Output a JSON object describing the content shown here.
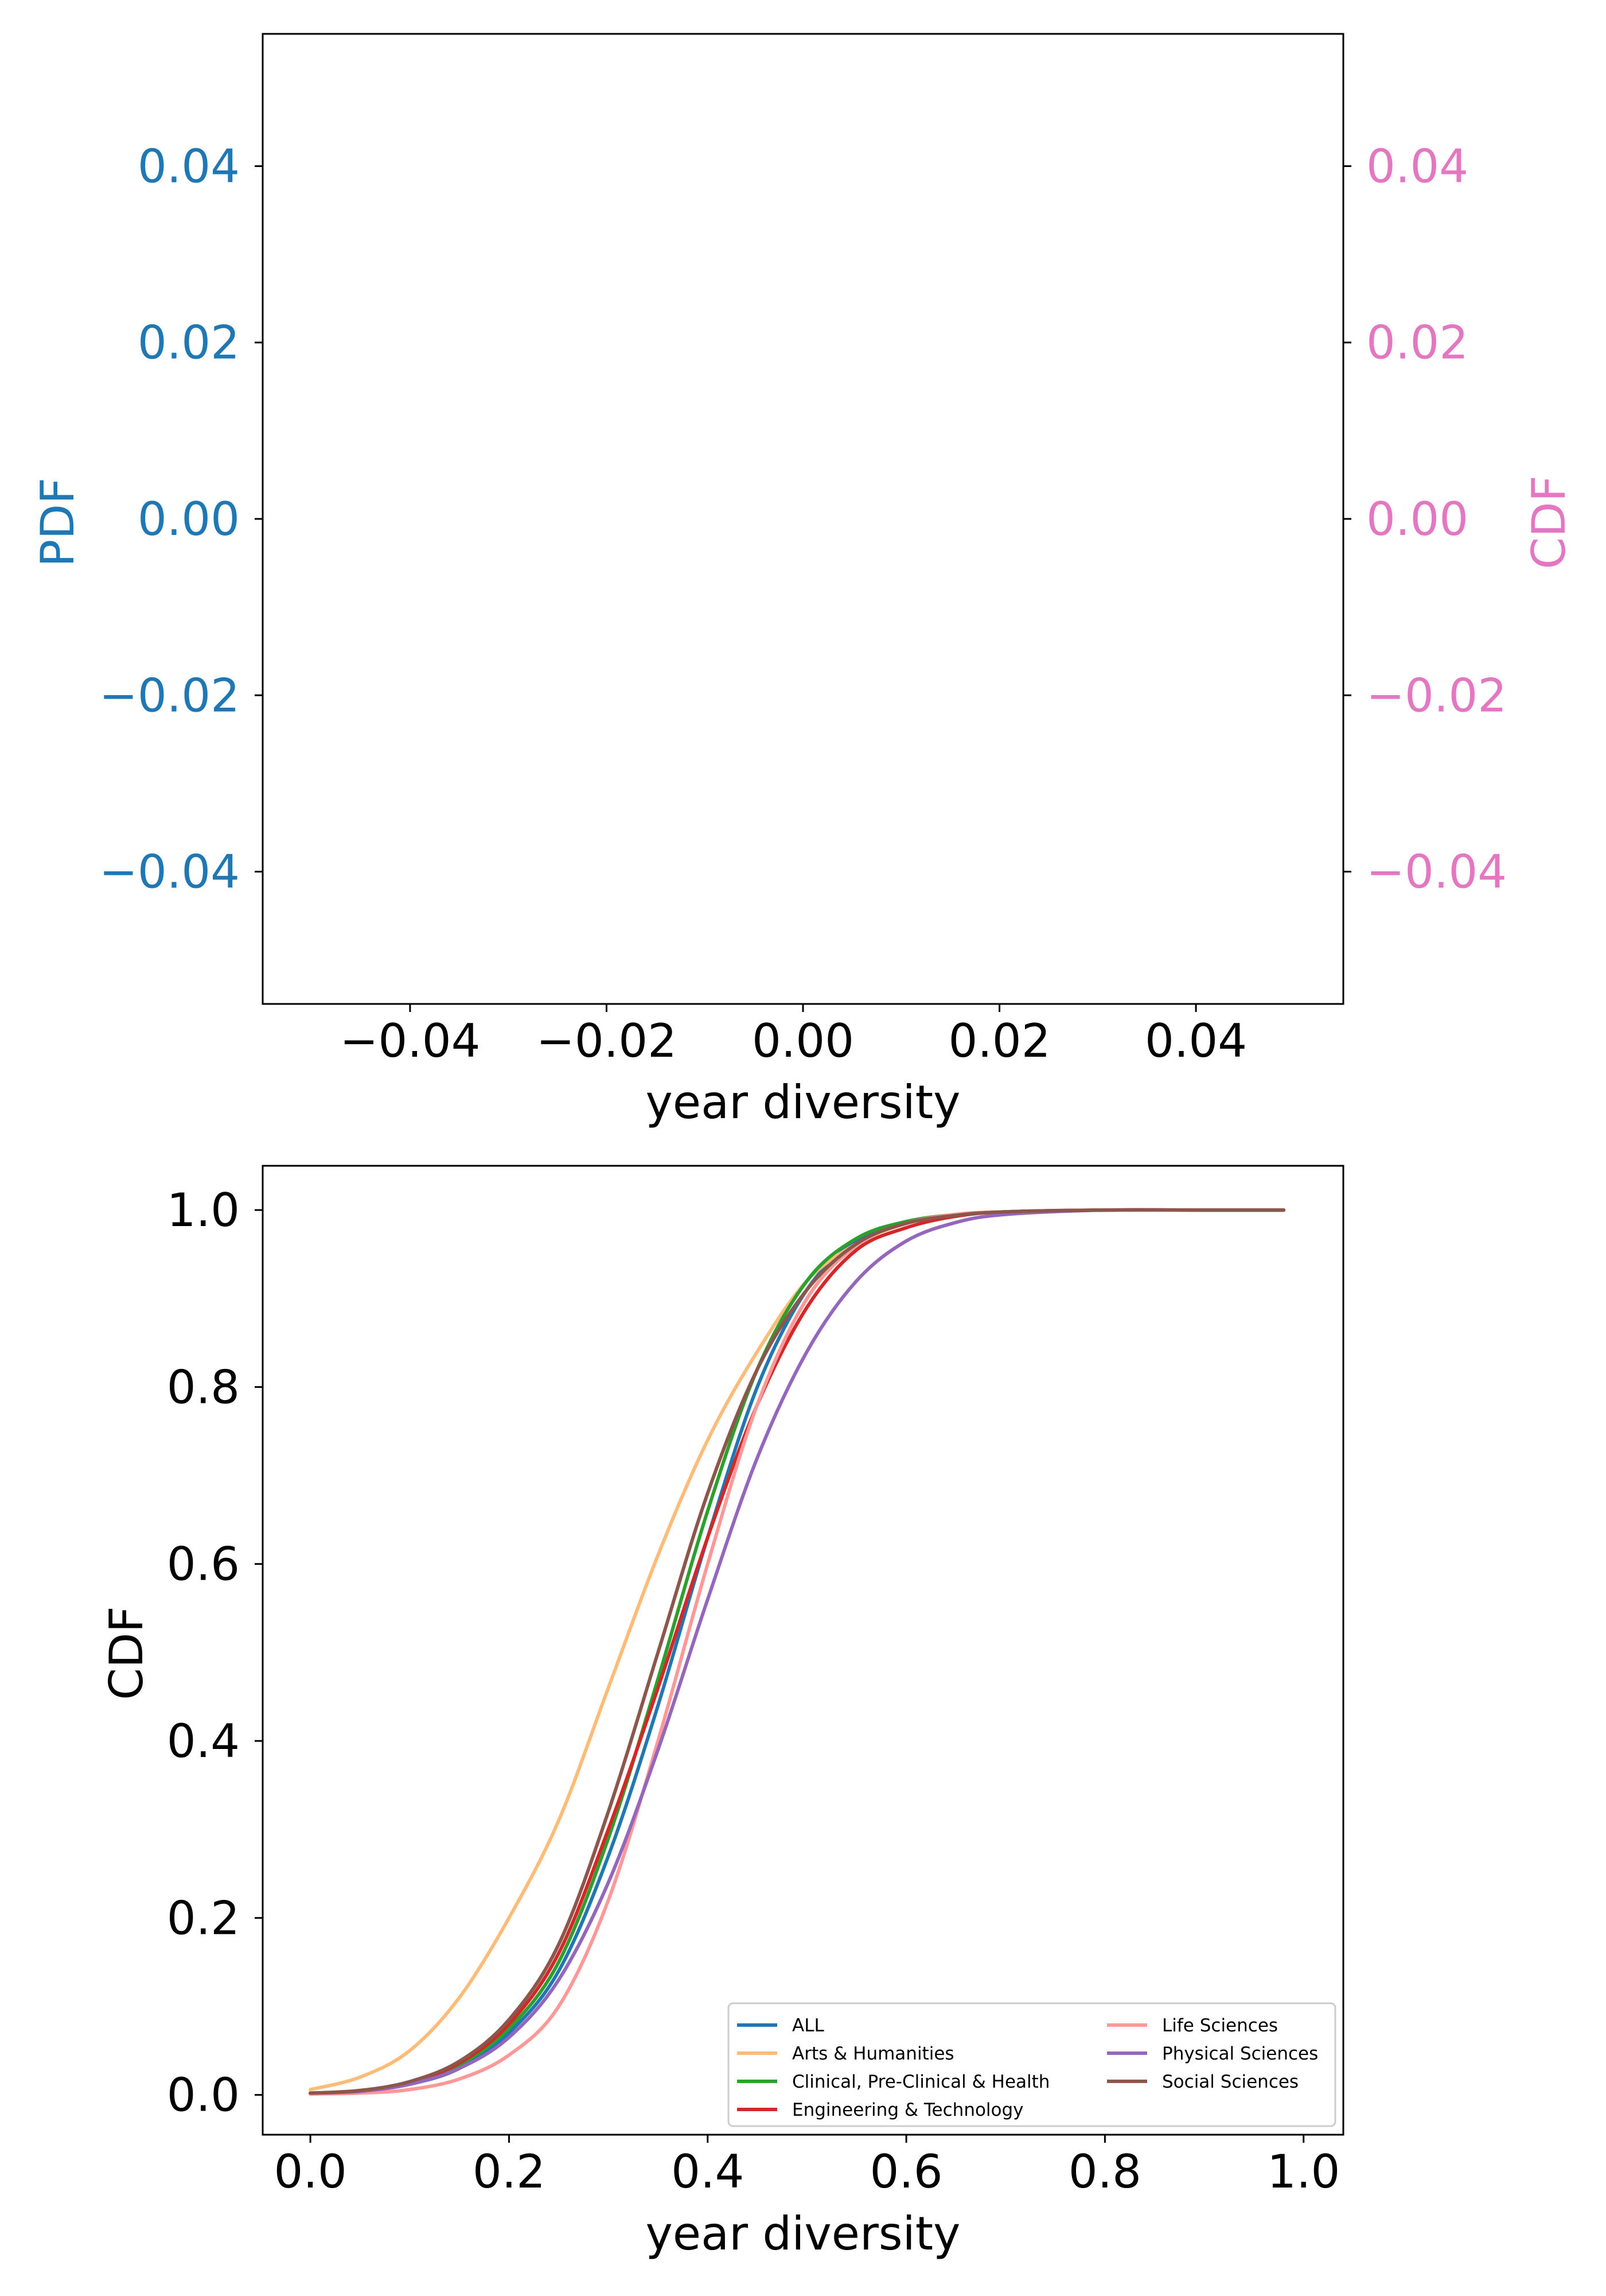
{
  "chart_data": [
    {
      "type": "line",
      "title": "",
      "xlabel": "year diversity",
      "ylabel_left": "PDF",
      "ylabel_right": "CDF",
      "xlim": [
        -0.055,
        0.055
      ],
      "ylim": [
        -0.055,
        0.055
      ],
      "x_ticks": [
        {
          "value": -0.04,
          "label": "−0.04"
        },
        {
          "value": -0.02,
          "label": "−0.02"
        },
        {
          "value": 0.0,
          "label": "0.00"
        },
        {
          "value": 0.02,
          "label": "0.02"
        },
        {
          "value": 0.04,
          "label": "0.04"
        }
      ],
      "y_ticks_left": [
        {
          "value": 0.04,
          "label": "0.04"
        },
        {
          "value": 0.02,
          "label": "0.02"
        },
        {
          "value": 0.0,
          "label": "0.00"
        },
        {
          "value": -0.02,
          "label": "−0.02"
        },
        {
          "value": -0.04,
          "label": "−0.04"
        }
      ],
      "y_ticks_right": [
        {
          "value": 0.04,
          "label": "0.04"
        },
        {
          "value": 0.02,
          "label": "0.02"
        },
        {
          "value": 0.0,
          "label": "0.00"
        },
        {
          "value": -0.02,
          "label": "−0.02"
        },
        {
          "value": -0.04,
          "label": "−0.04"
        }
      ],
      "left_axis_color": "#1f77b4",
      "right_axis_color": "#e377c2",
      "series": [],
      "grid": false
    },
    {
      "type": "line",
      "title": "",
      "xlabel": "year diversity",
      "ylabel": "CDF",
      "xlim": [
        -0.048,
        1.04
      ],
      "ylim": [
        -0.045,
        1.05
      ],
      "x_ticks": [
        {
          "value": 0.0,
          "label": "0.0"
        },
        {
          "value": 0.2,
          "label": "0.2"
        },
        {
          "value": 0.4,
          "label": "0.4"
        },
        {
          "value": 0.6,
          "label": "0.6"
        },
        {
          "value": 0.8,
          "label": "0.8"
        },
        {
          "value": 1.0,
          "label": "1.0"
        }
      ],
      "y_ticks": [
        {
          "value": 0.0,
          "label": "0.0"
        },
        {
          "value": 0.2,
          "label": "0.2"
        },
        {
          "value": 0.4,
          "label": "0.4"
        },
        {
          "value": 0.6,
          "label": "0.6"
        },
        {
          "value": 0.8,
          "label": "0.8"
        },
        {
          "value": 1.0,
          "label": "1.0"
        }
      ],
      "grid": false,
      "legend_placement": "bottom-right",
      "legend_columns": 2,
      "series": [
        {
          "name": "ALL",
          "color": "#1f77b4",
          "x": [
            0.0,
            0.05,
            0.1,
            0.15,
            0.2,
            0.25,
            0.3,
            0.35,
            0.4,
            0.45,
            0.5,
            0.55,
            0.6,
            0.65,
            0.7,
            0.8,
            0.9,
            0.98
          ],
          "y": [
            0.002,
            0.004,
            0.012,
            0.03,
            0.07,
            0.14,
            0.27,
            0.44,
            0.63,
            0.8,
            0.91,
            0.965,
            0.985,
            0.995,
            0.998,
            1.0,
            1.0,
            1.0
          ]
        },
        {
          "name": "Arts & Humanities",
          "color": "#ffbb78",
          "x": [
            0.0,
            0.05,
            0.1,
            0.15,
            0.2,
            0.25,
            0.3,
            0.35,
            0.4,
            0.45,
            0.5,
            0.55,
            0.6,
            0.65,
            0.7,
            0.8,
            0.9,
            0.98
          ],
          "y": [
            0.006,
            0.02,
            0.05,
            0.11,
            0.2,
            0.31,
            0.46,
            0.61,
            0.74,
            0.84,
            0.92,
            0.962,
            0.985,
            0.995,
            0.998,
            1.0,
            1.0,
            1.0
          ]
        },
        {
          "name": "Clinical, Pre-Clinical & Health",
          "color": "#2ca02c",
          "x": [
            0.0,
            0.05,
            0.1,
            0.15,
            0.2,
            0.25,
            0.3,
            0.35,
            0.4,
            0.45,
            0.5,
            0.55,
            0.6,
            0.65,
            0.7,
            0.8,
            0.9,
            0.98
          ],
          "y": [
            0.002,
            0.004,
            0.013,
            0.034,
            0.075,
            0.15,
            0.29,
            0.47,
            0.66,
            0.82,
            0.92,
            0.968,
            0.987,
            0.995,
            0.998,
            1.0,
            1.0,
            1.0
          ]
        },
        {
          "name": "Engineering & Technology",
          "color": "#d62728",
          "x": [
            0.0,
            0.05,
            0.1,
            0.15,
            0.2,
            0.25,
            0.3,
            0.35,
            0.4,
            0.45,
            0.5,
            0.55,
            0.6,
            0.65,
            0.7,
            0.8,
            0.9,
            0.98
          ],
          "y": [
            0.002,
            0.004,
            0.014,
            0.036,
            0.08,
            0.16,
            0.3,
            0.46,
            0.63,
            0.78,
            0.89,
            0.955,
            0.98,
            0.993,
            0.998,
            1.0,
            1.0,
            1.0
          ]
        },
        {
          "name": "Life Sciences",
          "color": "#ff9896",
          "x": [
            0.0,
            0.05,
            0.1,
            0.15,
            0.2,
            0.25,
            0.3,
            0.35,
            0.4,
            0.45,
            0.5,
            0.55,
            0.6,
            0.65,
            0.7,
            0.8,
            0.9,
            0.98
          ],
          "y": [
            0.001,
            0.002,
            0.006,
            0.018,
            0.045,
            0.1,
            0.22,
            0.4,
            0.6,
            0.78,
            0.9,
            0.96,
            0.985,
            0.995,
            0.998,
            1.0,
            1.0,
            1.0
          ]
        },
        {
          "name": "Physical Sciences",
          "color": "#9467bd",
          "x": [
            0.0,
            0.05,
            0.1,
            0.15,
            0.2,
            0.25,
            0.3,
            0.35,
            0.4,
            0.45,
            0.5,
            0.55,
            0.6,
            0.65,
            0.7,
            0.8,
            0.9,
            0.98
          ],
          "y": [
            0.002,
            0.004,
            0.012,
            0.03,
            0.065,
            0.13,
            0.24,
            0.39,
            0.56,
            0.72,
            0.84,
            0.92,
            0.965,
            0.986,
            0.995,
            1.0,
            1.0,
            1.0
          ]
        },
        {
          "name": "Social Sciences",
          "color": "#8c564b",
          "x": [
            0.0,
            0.05,
            0.1,
            0.15,
            0.2,
            0.25,
            0.3,
            0.35,
            0.4,
            0.45,
            0.5,
            0.55,
            0.6,
            0.65,
            0.7,
            0.8,
            0.9,
            0.98
          ],
          "y": [
            0.002,
            0.005,
            0.015,
            0.038,
            0.085,
            0.17,
            0.32,
            0.5,
            0.68,
            0.82,
            0.91,
            0.962,
            0.985,
            0.994,
            0.998,
            1.0,
            1.0,
            1.0
          ]
        }
      ]
    }
  ]
}
